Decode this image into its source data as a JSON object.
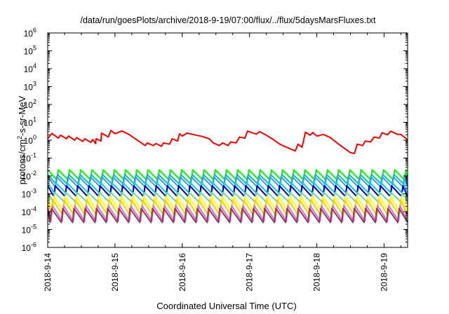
{
  "chart_data": {
    "type": "line",
    "title": "/data/run/goesPlots/archive/2018-9-19/07:00/flux/../flux/5daysMarsFluxes.txt",
    "xlabel": "Coordinated Universal Time (UTC)",
    "ylabel_parts": {
      "base": "protons/cm",
      "sup": "2",
      "rest": "-s-sr-MeV"
    },
    "y_scale": "log",
    "ylim_exp": [
      -6,
      6
    ],
    "y_tick_base": "10",
    "y_tick_exponents": [
      "-6",
      "-5",
      "-4",
      "-3",
      "-2",
      "-1",
      "0",
      "1",
      "2",
      "3",
      "4",
      "5",
      "6"
    ],
    "x_tick_labels": [
      "2018-9-14",
      "2018-9-15",
      "2018-9-16",
      "2018-9-17",
      "2018-9-18",
      "2018-9-19"
    ],
    "xlim_days": [
      0,
      5.35
    ],
    "grid": false,
    "legend": "none",
    "series": [
      {
        "color": "#ff0000",
        "x": [
          0.0,
          0.06,
          0.16,
          0.19,
          0.28,
          0.31,
          0.4,
          0.43,
          0.52,
          0.55,
          0.64,
          0.67,
          0.71,
          0.72,
          0.79,
          0.8,
          0.9,
          0.94,
          1.0,
          1.1,
          1.2,
          1.35,
          1.45,
          1.48,
          1.57,
          1.61,
          1.69,
          1.72,
          1.81,
          1.85,
          1.93,
          1.96,
          2.0,
          2.07,
          2.18,
          2.3,
          2.4,
          2.46,
          2.55,
          2.6,
          2.68,
          2.72,
          2.8,
          2.85,
          2.93,
          2.97,
          3.1,
          3.15,
          3.25,
          3.35,
          3.45,
          3.55,
          3.68,
          3.72,
          3.78,
          3.83,
          3.9,
          3.94,
          4.0,
          4.1,
          4.2,
          4.3,
          4.42,
          4.5,
          4.56,
          4.6,
          4.68,
          4.72,
          4.8,
          4.85,
          4.93,
          4.97,
          5.05,
          5.1,
          5.2,
          5.25,
          5.32,
          5.35
        ],
        "y": [
          1.2,
          2.4,
          1.3,
          1.9,
          1.2,
          1.7,
          1.0,
          1.4,
          0.85,
          1.2,
          0.75,
          1.1,
          0.65,
          1.2,
          0.9,
          2.5,
          1.5,
          3.5,
          2.3,
          3.3,
          2.2,
          0.9,
          0.5,
          0.7,
          0.5,
          0.65,
          0.45,
          0.7,
          0.6,
          1.2,
          0.9,
          2.3,
          1.7,
          2.5,
          2.0,
          1.6,
          1.2,
          0.7,
          0.5,
          0.7,
          0.5,
          0.8,
          0.7,
          1.5,
          1.3,
          3.2,
          2.2,
          3.0,
          1.9,
          1.1,
          0.6,
          0.4,
          0.25,
          0.6,
          0.4,
          2.8,
          1.9,
          2.7,
          1.7,
          2.1,
          1.4,
          0.7,
          0.33,
          0.2,
          0.18,
          0.6,
          0.5,
          0.9,
          0.8,
          1.5,
          1.3,
          2.6,
          2.0,
          3.2,
          2.1,
          2.1,
          1.3,
          1.0
        ]
      },
      {
        "color": "#00ff00",
        "base": 0.022,
        "dip": 0.006
      },
      {
        "color": "#00cc99",
        "base": 0.012,
        "dip": 0.0035
      },
      {
        "color": "#3399ff",
        "base": 0.009,
        "dip": 0.0024
      },
      {
        "color": "#00ccff",
        "base": 0.004,
        "dip": 0.0011
      },
      {
        "color": "#0000cc",
        "base": 0.0028,
        "dip": 0.0007
      },
      {
        "color": "#66dd99",
        "base": 0.0012,
        "dip": 0.00035
      },
      {
        "color": "#ffff00",
        "base": 0.0007,
        "dip": 0.0001
      },
      {
        "color": "#ffcc00",
        "base": 0.00045,
        "dip": 6e-05
      },
      {
        "color": "#cc77cc",
        "base": 0.00022,
        "dip": 3e-05
      },
      {
        "color": "#993366",
        "base": 0.00015,
        "dip": 2.5e-05
      }
    ]
  }
}
